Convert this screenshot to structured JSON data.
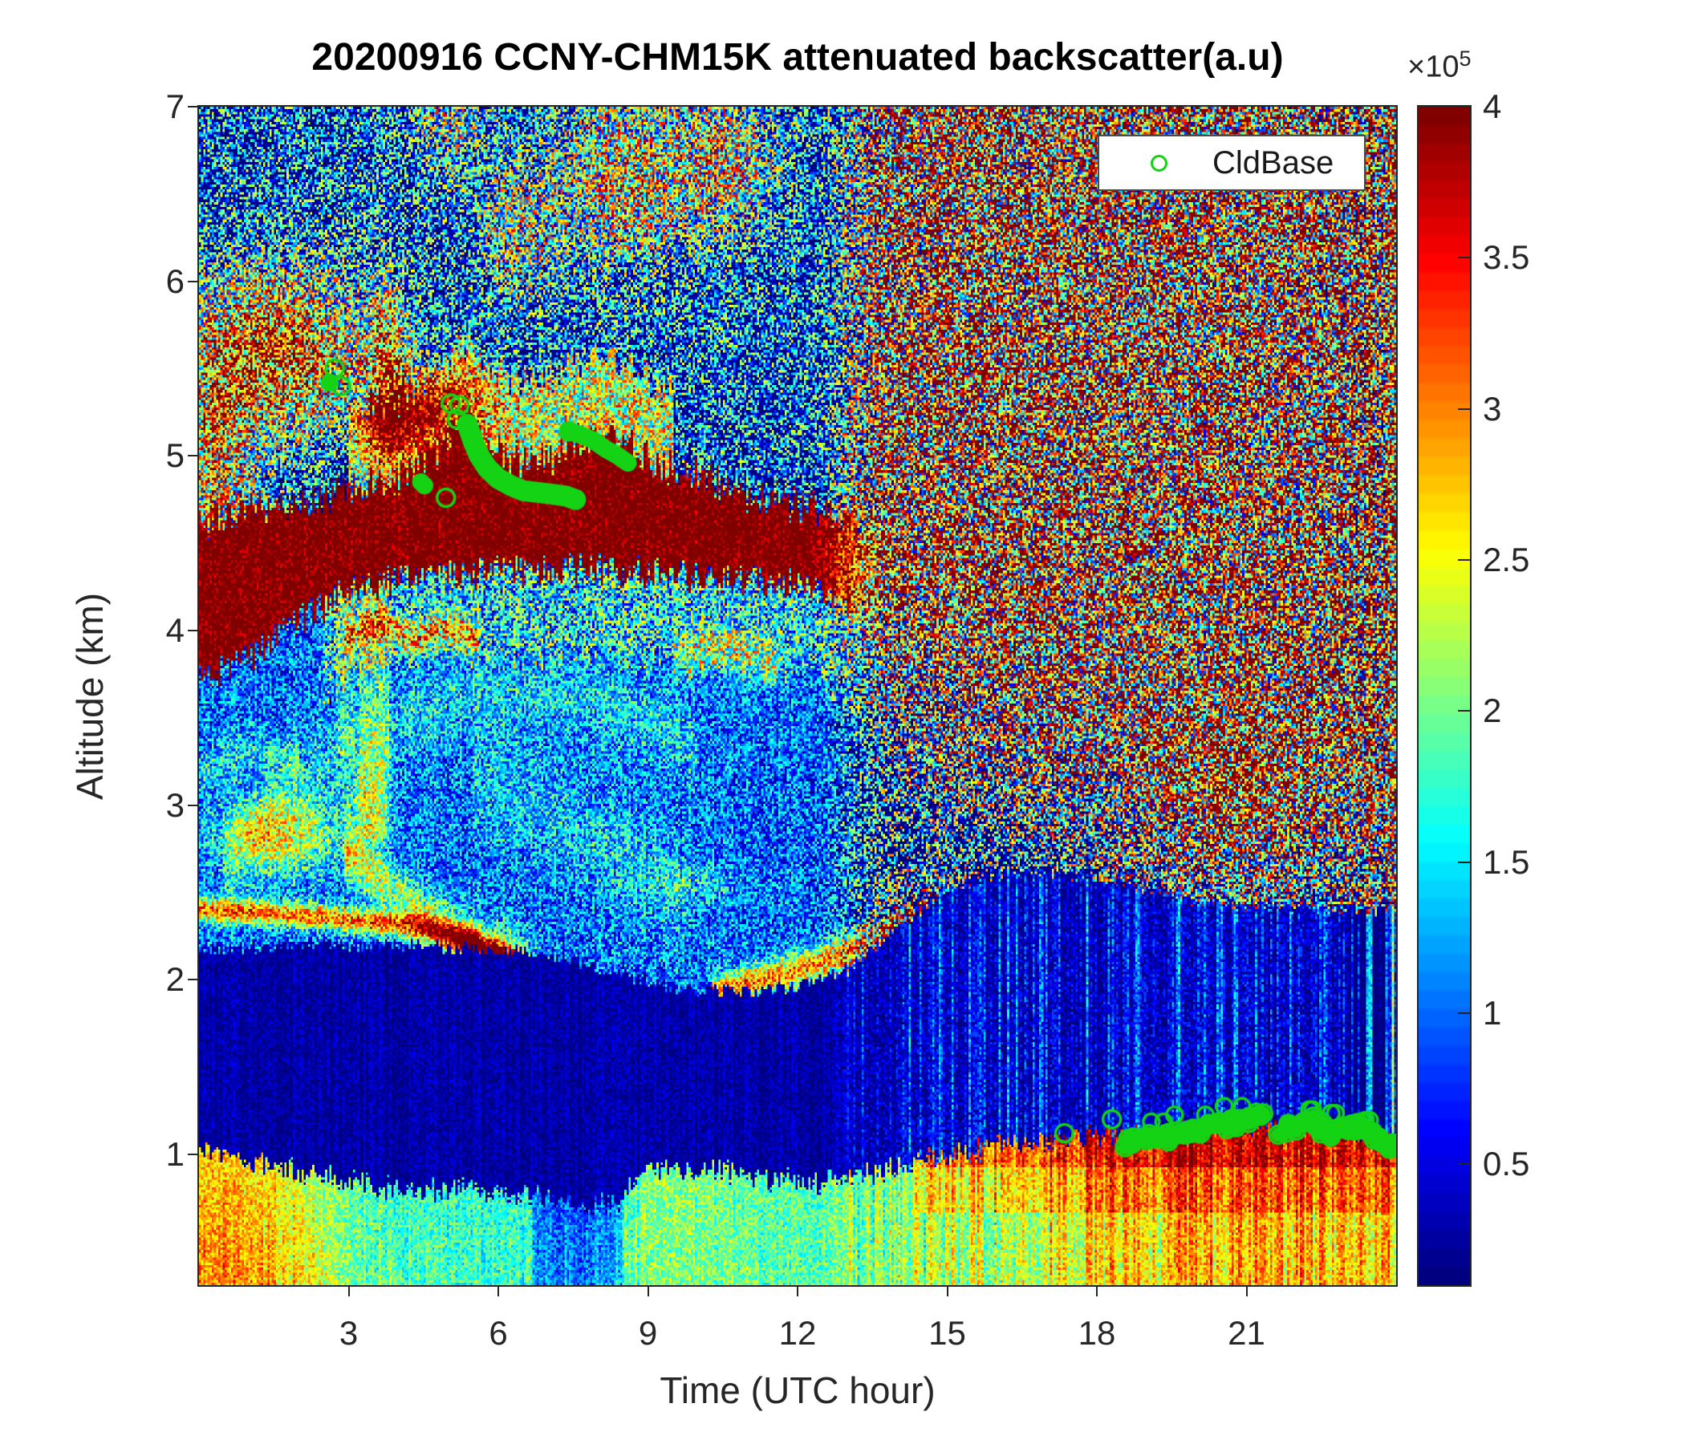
{
  "figure": {
    "background": "#ffffff",
    "axis_color": "#262626"
  },
  "chart_data": {
    "type": "heatmap",
    "title": "20200916 CCNY-CHM15K attenuated backscatter(a.u)",
    "xlabel": "Time (UTC hour)",
    "ylabel": "Altitude (km)",
    "x_range_hours": [
      0,
      24
    ],
    "y_range_km": [
      0.25,
      7
    ],
    "x_ticks": [
      3,
      6,
      9,
      12,
      15,
      18,
      21
    ],
    "y_ticks": [
      1,
      2,
      3,
      4,
      5,
      6,
      7
    ],
    "grid": false,
    "legend": {
      "label": "CldBase",
      "marker": "green-open-circle",
      "marker_color": "#14d314",
      "position": "top-right"
    },
    "colorbar": {
      "colormap": "jet",
      "levels": 64,
      "exponent_label": "×10",
      "exponent": "5",
      "ticks": [
        4,
        3.5,
        3,
        2.5,
        2,
        1.5,
        1,
        0.5
      ],
      "vmin": 0.1,
      "vmax": 4.0
    },
    "render": {
      "cols": 560,
      "rows": 470,
      "seed": 916,
      "blend_t": [
        12.2,
        14.2
      ],
      "surface_top": [
        [
          0,
          1.03
        ],
        [
          1,
          0.97
        ],
        [
          2,
          0.9
        ],
        [
          3,
          0.84
        ],
        [
          4,
          0.8
        ],
        [
          5,
          0.79
        ],
        [
          6,
          0.78
        ],
        [
          6.8,
          0.76
        ],
        [
          7.6,
          0.7
        ],
        [
          8.4,
          0.73
        ],
        [
          8.9,
          0.88
        ],
        [
          9.6,
          0.92
        ],
        [
          10.5,
          0.9
        ],
        [
          11.5,
          0.86
        ],
        [
          12.5,
          0.83
        ],
        [
          13.5,
          0.9
        ],
        [
          14.5,
          0.97
        ],
        [
          15.5,
          1.02
        ],
        [
          16.5,
          1.06
        ],
        [
          17.5,
          1.09
        ],
        [
          18.5,
          1.1
        ],
        [
          19.5,
          1.12
        ],
        [
          20.5,
          1.16
        ],
        [
          21.5,
          1.17
        ],
        [
          22.5,
          1.15
        ],
        [
          23.2,
          1.13
        ],
        [
          24,
          1.07
        ]
      ],
      "surface_profile": [
        [
          0,
          2.75
        ],
        [
          1.5,
          2.6
        ],
        [
          2.5,
          2.15
        ],
        [
          3.5,
          1.8
        ],
        [
          5,
          1.75
        ],
        [
          6.5,
          1.7
        ],
        [
          7.2,
          1.45
        ],
        [
          8.2,
          1.5
        ],
        [
          9,
          2.1
        ],
        [
          10,
          2.05
        ],
        [
          11,
          1.95
        ],
        [
          12,
          1.9
        ],
        [
          13,
          2.0
        ],
        [
          14,
          2.2
        ],
        [
          15,
          2.45
        ],
        [
          16,
          2.6
        ],
        [
          17,
          2.75
        ],
        [
          18,
          2.85
        ],
        [
          19,
          2.95
        ],
        [
          20,
          3.0
        ],
        [
          21,
          3.0
        ],
        [
          22,
          3.0
        ],
        [
          23,
          3.0
        ],
        [
          24,
          2.95
        ]
      ],
      "clean_top": [
        [
          0,
          2.18
        ],
        [
          4,
          2.2
        ],
        [
          7,
          2.15
        ],
        [
          8.5,
          2.02
        ],
        [
          10,
          1.93
        ],
        [
          12,
          1.95
        ],
        [
          13,
          2.05
        ],
        [
          14,
          2.3
        ],
        [
          15,
          2.5
        ],
        [
          16,
          2.6
        ],
        [
          17,
          2.62
        ],
        [
          18,
          2.58
        ],
        [
          19,
          2.5
        ],
        [
          20,
          2.45
        ],
        [
          21,
          2.42
        ],
        [
          22,
          2.42
        ],
        [
          23,
          2.4
        ],
        [
          24,
          2.4
        ]
      ],
      "deck_bottom": [
        [
          0,
          3.72
        ],
        [
          1,
          3.85
        ],
        [
          2,
          4.05
        ],
        [
          3,
          4.22
        ],
        [
          4,
          4.3
        ],
        [
          5,
          4.33
        ],
        [
          6,
          4.35
        ],
        [
          7,
          4.35
        ],
        [
          8,
          4.34
        ],
        [
          9,
          4.33
        ],
        [
          10,
          4.3
        ],
        [
          11,
          4.28
        ],
        [
          12,
          4.25
        ],
        [
          13,
          4.15
        ],
        [
          14,
          4.05
        ]
      ],
      "deck_top": [
        [
          0,
          4.62
        ],
        [
          1,
          4.7
        ],
        [
          2,
          4.72
        ],
        [
          3,
          4.8
        ],
        [
          4,
          4.88
        ],
        [
          4.7,
          5.0
        ],
        [
          5.3,
          5.2
        ],
        [
          5.8,
          5.05
        ],
        [
          6.5,
          4.95
        ],
        [
          7,
          4.97
        ],
        [
          7.6,
          5.08
        ],
        [
          8.3,
          5.12
        ],
        [
          8.8,
          5.02
        ],
        [
          9.5,
          4.92
        ],
        [
          10.5,
          4.83
        ],
        [
          11.5,
          4.75
        ],
        [
          12.5,
          4.68
        ],
        [
          14,
          4.6
        ]
      ],
      "red_boundary": [
        [
          12,
          4.35
        ],
        [
          13,
          4.2
        ],
        [
          14,
          3.95
        ],
        [
          15,
          3.7
        ],
        [
          16,
          3.5
        ],
        [
          17,
          3.35
        ],
        [
          18,
          3.25
        ],
        [
          19,
          3.2
        ],
        [
          20,
          3.15
        ],
        [
          21,
          3.1
        ],
        [
          22,
          3.1
        ],
        [
          23,
          3.05
        ],
        [
          24,
          3.0
        ]
      ],
      "zones": {
        "clean": {
          "mean": 0.25,
          "amp": 0.22
        },
        "mid": {
          "mean": 1.0,
          "amp": 0.8
        },
        "deck": {
          "mean": 4.15,
          "amp": 0.5
        },
        "upper": {
          "mean": 0.8,
          "amp": 1.75
        },
        "right": {
          "base": 0.9,
          "span": 2.0,
          "amp": 2.5
        },
        "right_navy": {
          "mean": 0.38,
          "amp": 0.42
        },
        "surface_amp": 0.45
      },
      "halos": {
        "under_deck": {
          "dz": 0.5,
          "add": 0.5,
          "amp": 0.4,
          "t": [
            2.5,
            13.5
          ]
        },
        "above_deck": {
          "dz": 0.45,
          "add": 1.5,
          "amp": 1.2,
          "t": [
            3,
            9.5
          ]
        }
      },
      "upper_patches": [
        {
          "t": 1.7,
          "z": 5.6,
          "st": 1.7,
          "sz": 0.5,
          "add": 2.6
        },
        {
          "t": 3.8,
          "z": 5.5,
          "st": 0.4,
          "sz": 0.5,
          "add": 2.0
        },
        {
          "t": 4.6,
          "z": 5.25,
          "st": 1.2,
          "sz": 0.25,
          "add": 1.6
        },
        {
          "t": 0.3,
          "z": 4.95,
          "st": 0.8,
          "sz": 0.7,
          "add": 1.8
        },
        {
          "t": 8.6,
          "z": 6.6,
          "st": 1.3,
          "sz": 0.5,
          "add": 1.7
        },
        {
          "t": 6.4,
          "z": 6.3,
          "st": 0.9,
          "sz": 0.4,
          "add": 1.2
        },
        {
          "t": 10.6,
          "z": 6.7,
          "st": 1.0,
          "sz": 0.45,
          "add": 1.5
        },
        {
          "t": 3.0,
          "z": 4.85,
          "st": 0.55,
          "sz": 0.3,
          "add": -0.7
        },
        {
          "t": 5.0,
          "z": 6.95,
          "st": 0.8,
          "sz": 0.3,
          "add": 1.1
        }
      ],
      "mid_patches": [
        {
          "t": 1.6,
          "z": 2.82,
          "st": 1.2,
          "sz": 0.22,
          "add": 1.5
        },
        {
          "t": 5.9,
          "z": 2.1,
          "st": 0.7,
          "sz": 0.18,
          "add": 2.0
        },
        {
          "t": 3.4,
          "z": 3.0,
          "st": 0.5,
          "sz": 0.3,
          "add": 0.8
        },
        {
          "t": 10.0,
          "z": 2.55,
          "st": 0.7,
          "sz": 0.1,
          "add": 0.5
        }
      ],
      "right_patches": [
        {
          "t": 20.8,
          "z": 3.0,
          "st": 1.7,
          "sz": 0.45,
          "add": 1.2
        },
        {
          "t": 16.2,
          "z": 2.35,
          "st": 1.8,
          "sz": 0.55,
          "add": -0.85
        },
        {
          "t": 15.2,
          "z": 2.3,
          "st": 1.3,
          "sz": 0.28,
          "add": 1.0
        },
        {
          "t": 23.6,
          "z": 2.2,
          "st": 0.5,
          "sz": 0.8,
          "add": 0.6
        }
      ],
      "lines": [
        {
          "pts": [
            [
              0,
              2.4
            ],
            [
              2,
              2.37
            ],
            [
              3.5,
              2.33
            ],
            [
              4.5,
              2.3
            ],
            [
              5.5,
              2.22
            ],
            [
              6.3,
              2.1
            ],
            [
              7.0,
              1.98
            ]
          ],
          "w": 0.07,
          "add": 2.1
        },
        {
          "pts": [
            [
              2.9,
              2.72
            ],
            [
              3.6,
              2.58
            ],
            [
              4.3,
              2.42
            ],
            [
              5.0,
              2.28
            ],
            [
              5.6,
              2.18
            ]
          ],
          "w": 0.15,
          "add": 1.2
        },
        {
          "pts": [
            [
              2.9,
              3.95
            ],
            [
              3.6,
              4.05
            ],
            [
              4.3,
              3.95
            ],
            [
              5.0,
              4.02
            ],
            [
              5.6,
              3.96
            ]
          ],
          "w": 0.09,
          "add": 1.3
        },
        {
          "pts": [
            [
              10.3,
              1.92
            ],
            [
              12,
              2.05
            ],
            [
              13,
              2.15
            ],
            [
              14,
              2.3
            ],
            [
              15,
              2.42
            ],
            [
              16,
              2.52
            ]
          ],
          "w": 0.1,
          "add": 2.0,
          "fade": [
            14.6,
            16.4
          ]
        },
        {
          "pts": [
            [
              5.5,
              3.15
            ],
            [
              7,
              2.95
            ],
            [
              8.5,
              2.72
            ],
            [
              9.8,
              2.52
            ]
          ],
          "w": 0.3,
          "add": 0.4
        },
        {
          "pts": [
            [
              9.5,
              3.85
            ],
            [
              10.5,
              3.9
            ],
            [
              11.6,
              3.8
            ]
          ],
          "w": 0.14,
          "add": 0.8
        },
        {
          "pts": [
            [
              0.5,
              2.6
            ],
            [
              1.5,
              3.0
            ],
            [
              2.5,
              3.25
            ],
            [
              4,
              3.5
            ],
            [
              6,
              3.65
            ],
            [
              8,
              3.6
            ],
            [
              10,
              3.35
            ]
          ],
          "w": 0.22,
          "add": 0.45
        },
        {
          "pts": [
            [
              0,
              3.2
            ],
            [
              1,
              3.3
            ],
            [
              2,
              3.25
            ]
          ],
          "w": 0.12,
          "add": 0.5
        }
      ]
    },
    "cloud_base": {
      "color": "#14d314",
      "singles": [
        {
          "t": 2.72,
          "z": 5.5,
          "s": "o"
        },
        {
          "t": 2.62,
          "z": 5.42,
          "s": "f"
        },
        {
          "t": 2.85,
          "z": 5.4,
          "s": "o"
        },
        {
          "t": 5.05,
          "z": 5.3,
          "s": "o"
        },
        {
          "t": 5.22,
          "z": 5.29,
          "s": "o"
        },
        {
          "t": 5.17,
          "z": 5.21,
          "s": "o"
        },
        {
          "t": 4.45,
          "z": 4.85,
          "s": "f"
        },
        {
          "t": 4.52,
          "z": 4.83,
          "s": "f"
        },
        {
          "t": 4.95,
          "z": 4.76,
          "s": "o"
        },
        {
          "t": 17.35,
          "z": 1.12,
          "s": "o"
        },
        {
          "t": 18.3,
          "z": 1.2,
          "s": "o"
        }
      ],
      "chains": [
        {
          "lw": 26,
          "head_circles": 2,
          "pts": [
            [
              5.38,
              5.18
            ],
            [
              5.5,
              5.08
            ],
            [
              5.62,
              5.0
            ],
            [
              5.78,
              4.93
            ],
            [
              6.0,
              4.87
            ],
            [
              6.25,
              4.83
            ],
            [
              6.5,
              4.8
            ],
            [
              6.8,
              4.79
            ],
            [
              7.1,
              4.78
            ],
            [
              7.35,
              4.77
            ],
            [
              7.55,
              4.75
            ]
          ]
        },
        {
          "lw": 22,
          "head_circles": 1,
          "pts": [
            [
              7.42,
              5.14
            ],
            [
              7.65,
              5.12
            ],
            [
              7.9,
              5.09
            ],
            [
              8.15,
              5.04
            ],
            [
              8.4,
              5.0
            ],
            [
              8.6,
              4.96
            ]
          ]
        }
      ],
      "clusters": [
        {
          "t0": 18.55,
          "t1": 19.45,
          "z0": 1.06,
          "z1": 1.13,
          "n": 15
        },
        {
          "t0": 19.5,
          "t1": 20.4,
          "z0": 1.1,
          "z1": 1.17,
          "n": 16
        },
        {
          "t0": 20.55,
          "t1": 21.35,
          "z0": 1.16,
          "z1": 1.22,
          "n": 12
        },
        {
          "t0": 21.7,
          "t1": 22.45,
          "z0": 1.13,
          "z1": 1.2,
          "n": 11
        },
        {
          "t0": 22.55,
          "t1": 23.3,
          "z0": 1.11,
          "z1": 1.18,
          "n": 12
        },
        {
          "t0": 23.35,
          "t1": 23.97,
          "z0": 1.14,
          "z1": 1.03,
          "n": 14
        }
      ]
    }
  }
}
